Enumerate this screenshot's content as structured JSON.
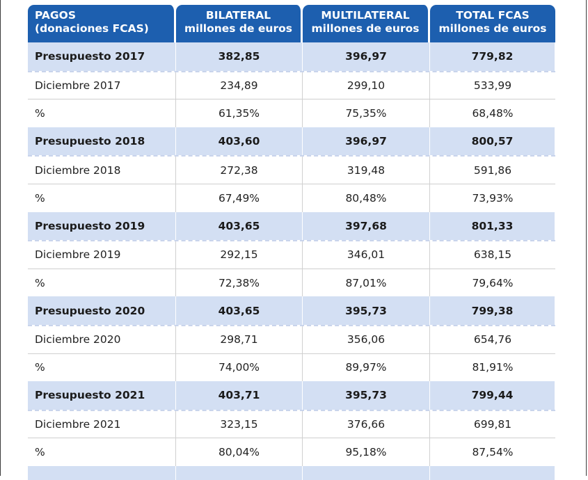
{
  "header": {
    "col1_line1": "PAGOS",
    "col1_line2": "(donaciones FCAS)",
    "col2_line1": "BILATERAL",
    "col2_line2": "millones de euros",
    "col3_line1": "MULTILATERAL",
    "col3_line2": "millones de euros",
    "col4_line1": "TOTAL FCAS",
    "col4_line2": "millones de euros"
  },
  "rows": [
    {
      "label": "Presupuesto 2017",
      "bilateral": "382,85",
      "multilateral": "396,97",
      "total": "779,82"
    },
    {
      "label": "Diciembre 2017",
      "bilateral": "234,89",
      "multilateral": "299,10",
      "total": "533,99"
    },
    {
      "label": "%",
      "bilateral": "61,35%",
      "multilateral": "75,35%",
      "total": "68,48%"
    },
    {
      "label": "Presupuesto 2018",
      "bilateral": "403,60",
      "multilateral": "396,97",
      "total": "800,57"
    },
    {
      "label": "Diciembre 2018",
      "bilateral": "272,38",
      "multilateral": "319,48",
      "total": "591,86"
    },
    {
      "label": "%",
      "bilateral": "67,49%",
      "multilateral": "80,48%",
      "total": "73,93%"
    },
    {
      "label": "Presupuesto 2019",
      "bilateral": "403,65",
      "multilateral": "397,68",
      "total": "801,33"
    },
    {
      "label": "Diciembre 2019",
      "bilateral": "292,15",
      "multilateral": "346,01",
      "total": "638,15"
    },
    {
      "label": "%",
      "bilateral": "72,38%",
      "multilateral": "87,01%",
      "total": "79,64%"
    },
    {
      "label": "Presupuesto 2020",
      "bilateral": "403,65",
      "multilateral": "395,73",
      "total": "799,38"
    },
    {
      "label": "Diciembre 2020",
      "bilateral": "298,71",
      "multilateral": "356,06",
      "total": "654,76"
    },
    {
      "label": "%",
      "bilateral": "74,00%",
      "multilateral": "89,97%",
      "total": "81,91%"
    },
    {
      "label": "Presupuesto 2021",
      "bilateral": "403,71",
      "multilateral": "395,73",
      "total": "799,44"
    },
    {
      "label": "Diciembre 2021",
      "bilateral": "323,15",
      "multilateral": "376,66",
      "total": "699,81"
    },
    {
      "label": "%",
      "bilateral": "80,04%",
      "multilateral": "95,18%",
      "total": "87,54%"
    }
  ],
  "colors": {
    "header_bg": "#1d5faf",
    "budget_row_bg": "#d3dff3"
  }
}
